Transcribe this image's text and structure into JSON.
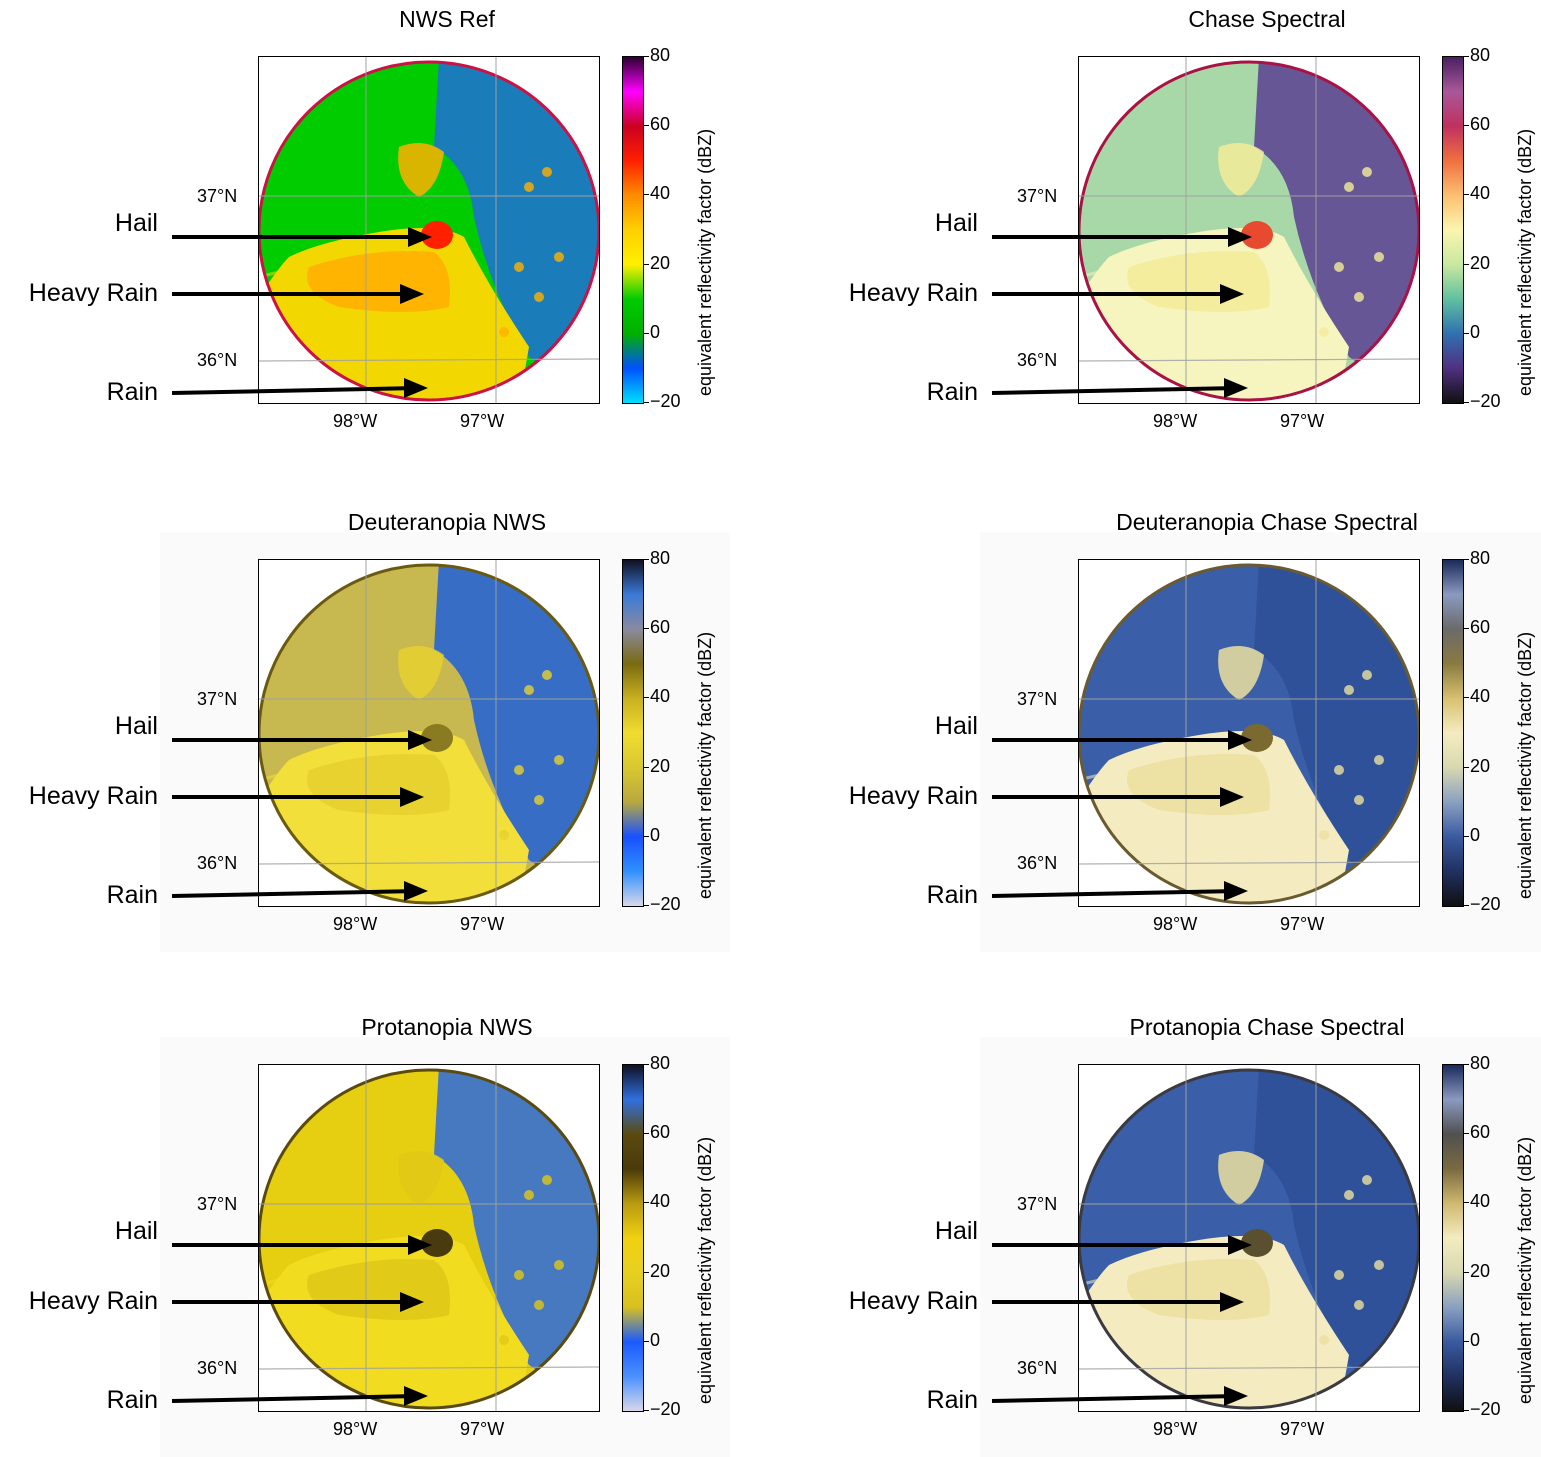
{
  "annotations": [
    "Hail",
    "Heavy Rain",
    "Rain"
  ],
  "lat_labels": [
    "37°N",
    "36°N"
  ],
  "lon_labels": [
    "98°W",
    "97°W"
  ],
  "colorbar_label": "equivalent reflectivity factor (dBZ)",
  "colorbar_ticks": [
    "80",
    "60",
    "40",
    "20",
    "0",
    "−20"
  ],
  "panels": [
    {
      "title": "NWS Ref",
      "bg": "#00cc00",
      "rim": "#cc1144",
      "rain": "#f2d800",
      "heavy": "#ffb000",
      "hail": "#ff2000",
      "clear": "#1e6fd9",
      "gray_bg": false,
      "colorbar": [
        "#2a0030",
        "#ff00ff",
        "#cc0020",
        "#ff2000",
        "#ff8c00",
        "#ffd000",
        "#fff000",
        "#00cc00",
        "#00b000",
        "#0050ff",
        "#00e0ff"
      ]
    },
    {
      "title": "Chase Spectral",
      "bg": "#a8d8a8",
      "rim": "#aa1144",
      "rain": "#f6f5c0",
      "heavy": "#f5ec9a",
      "hail": "#e84a30",
      "clear": "#5b3f93",
      "gray_bg": false,
      "colorbar": [
        "#4a2060",
        "#a8589a",
        "#c03060",
        "#f07040",
        "#fbc070",
        "#fbf5b0",
        "#c8e8a0",
        "#60c0a0",
        "#3070b0",
        "#503080",
        "#101010"
      ]
    },
    {
      "title": "Deuteranopia NWS",
      "bg": "#c8b850",
      "rim": "#6a5a10",
      "rain": "#f2df3a",
      "heavy": "#e6d030",
      "hail": "#8a7a20",
      "clear": "#1e5fd9",
      "gray_bg": true,
      "colorbar": [
        "#101020",
        "#3a7ad8",
        "#8a8aa0",
        "#7a6a10",
        "#c8b020",
        "#f0dc30",
        "#d8c830",
        "#b8a840",
        "#1850ff",
        "#3090ff",
        "#d8d8e8"
      ]
    },
    {
      "title": "Deuteranopia Chase Spectral",
      "bg": "#3a5fa8",
      "rim": "#6a5a30",
      "rain": "#f4ecc0",
      "heavy": "#ece0a0",
      "hail": "#7a6a30",
      "clear": "#2e4f98",
      "gray_bg": true,
      "colorbar": [
        "#1a2a5a",
        "#8a9ac0",
        "#6a6a6a",
        "#8a7a40",
        "#d8c070",
        "#f4ecc0",
        "#d8d8b0",
        "#8aa0c0",
        "#3a5aa0",
        "#203060",
        "#101010"
      ]
    },
    {
      "title": "Protanopia NWS",
      "bg": "#e6cf10",
      "rim": "#5a4a10",
      "rain": "#f2dc20",
      "heavy": "#e0c818",
      "hail": "#4a3a10",
      "clear": "#2a6ae0",
      "gray_bg": true,
      "colorbar": [
        "#101020",
        "#3070e0",
        "#5a4a10",
        "#4a3a08",
        "#b89a10",
        "#f0d010",
        "#e8d020",
        "#d8c020",
        "#1a5aff",
        "#4a90ff",
        "#d8d8e8"
      ]
    },
    {
      "title": "Protanopia Chase Spectral",
      "bg": "#3a5fa8",
      "rim": "#3a3a40",
      "rain": "#f4ecc0",
      "heavy": "#ece0a0",
      "hail": "#5a5030",
      "clear": "#2e4f98",
      "gray_bg": true,
      "colorbar": [
        "#1a2a5a",
        "#8a9ac0",
        "#505050",
        "#7a6a40",
        "#d0b870",
        "#f4ecc0",
        "#d8d8b0",
        "#8aa0c0",
        "#3a5aa0",
        "#203060",
        "#101010"
      ]
    }
  ]
}
